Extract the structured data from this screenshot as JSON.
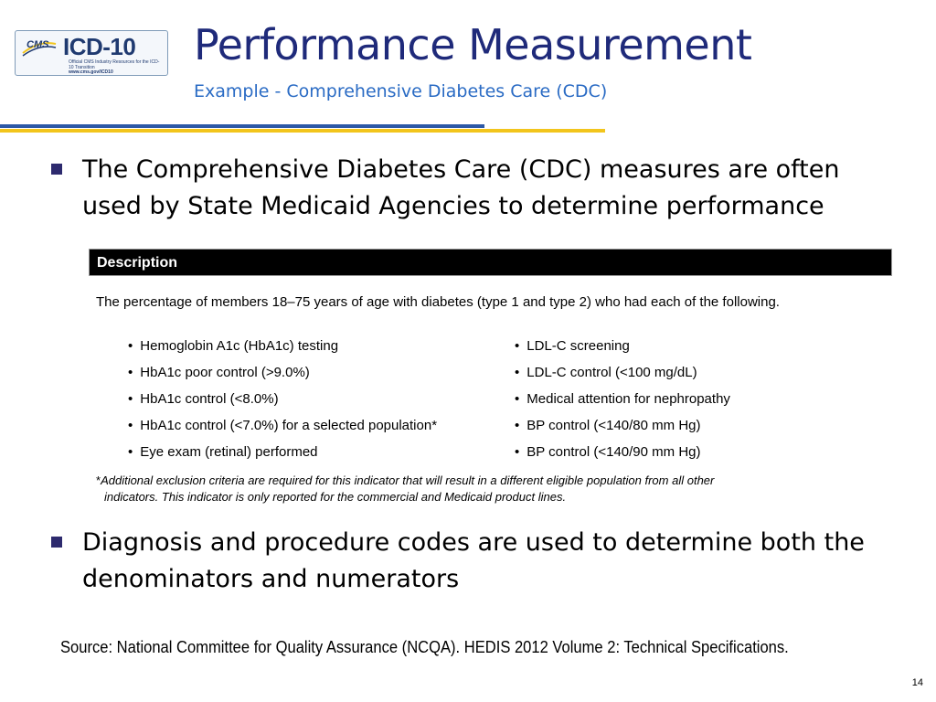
{
  "logo": {
    "cms": "CMS",
    "brand": "ICD-10",
    "tagline": "Official CMS Industry Resources for the ICD-10 Transition",
    "url": "www.cms.gov/ICD10"
  },
  "header": {
    "title": "Performance Measurement",
    "subtitle": "Example - Comprehensive Diabetes Care (CDC)"
  },
  "colors": {
    "title": "#1f2a7a",
    "subtitle": "#2a6bc4",
    "rule_blue": "#2c58a6",
    "rule_gold": "#f2c51c",
    "bullet": "#2d2a6e"
  },
  "bullets": [
    "The Comprehensive Diabetes Care (CDC) measures are often used by State Medicaid Agencies to determine performance",
    "Diagnosis and procedure codes are used to determine both the denominators and numerators"
  ],
  "table": {
    "header": "Description",
    "intro": "The percentage of members 18–75 years of age with diabetes (type 1 and type 2) who had each of the following.",
    "left_items": [
      "Hemoglobin A1c (HbA1c) testing",
      "HbA1c poor control (>9.0%)",
      "HbA1c control (<8.0%)",
      "HbA1c control (<7.0%) for a selected population*",
      "Eye exam (retinal) performed"
    ],
    "right_items": [
      "LDL-C screening",
      "LDL-C control (<100 mg/dL)",
      "Medical attention for nephropathy",
      "BP control (<140/80 mm Hg)",
      "BP control (<140/90 mm Hg)"
    ],
    "footnote_marker": "*",
    "footnote_line1": "Additional exclusion criteria are required for this indicator that will result in a different eligible population from all other",
    "footnote_line2": "indicators. This indicator is only reported for the commercial and Medicaid product lines."
  },
  "source": "Source: National Committee for Quality Assurance (NCQA). HEDIS 2012 Volume 2: Technical Specifications.",
  "page_number": "14"
}
